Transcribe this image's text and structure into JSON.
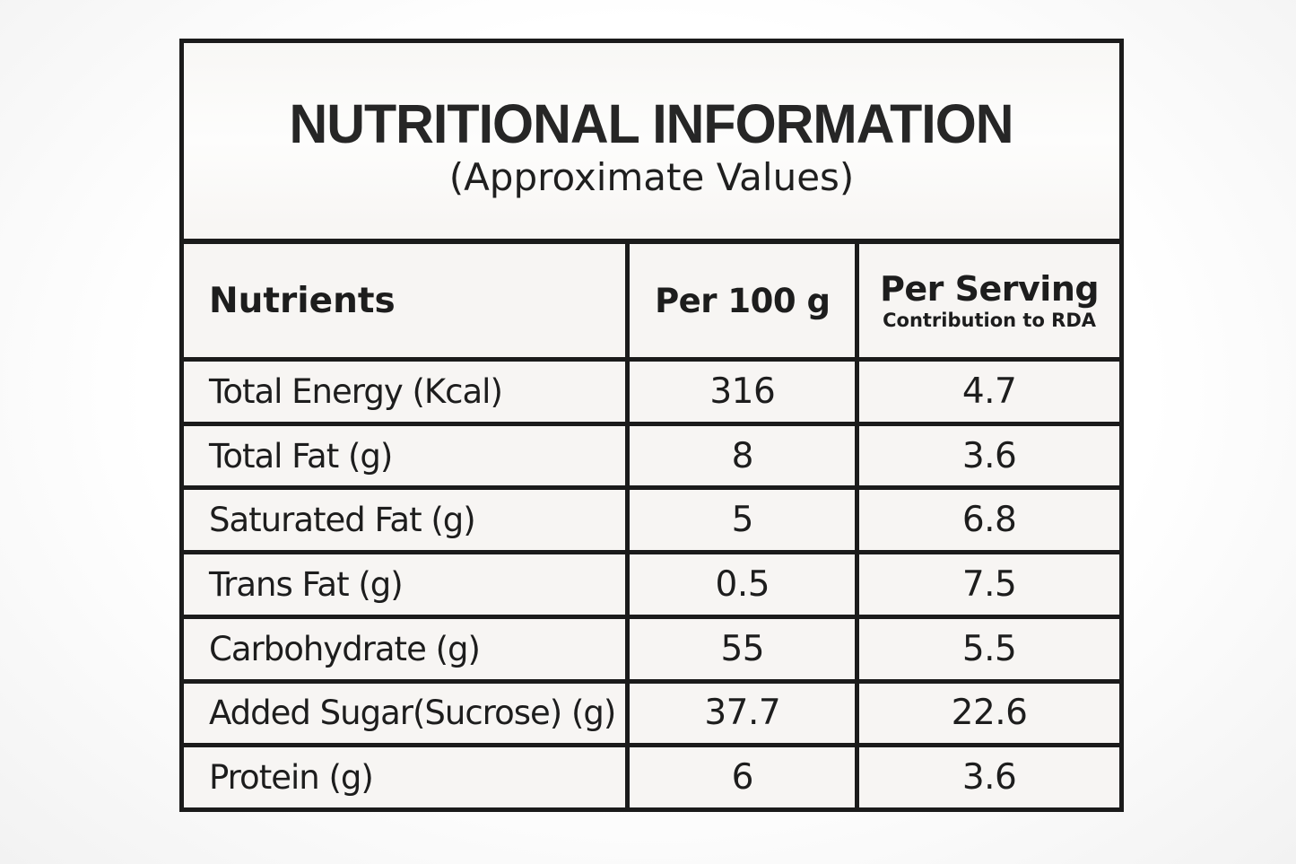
{
  "panel": {
    "title": "NUTRITIONAL INFORMATION",
    "subtitle": "(Approximate Values)"
  },
  "table": {
    "columns": {
      "nutrients": "Nutrients",
      "per_100g": "Per 100 g",
      "per_serving": "Per Serving",
      "per_serving_sub": "Contribution to RDA"
    },
    "rows": [
      {
        "nutrient": "Total Energy (Kcal)",
        "per_100g": "316",
        "per_serving": "4.7"
      },
      {
        "nutrient": "Total Fat (g)",
        "per_100g": "8",
        "per_serving": "3.6"
      },
      {
        "nutrient": "Saturated Fat (g)",
        "per_100g": "5",
        "per_serving": "6.8"
      },
      {
        "nutrient": "Trans Fat (g)",
        "per_100g": "0.5",
        "per_serving": "7.5"
      },
      {
        "nutrient": "Carbohydrate (g)",
        "per_100g": "55",
        "per_serving": "5.5"
      },
      {
        "nutrient": "Added Sugar(Sucrose) (g)",
        "per_100g": "37.7",
        "per_serving": "22.6"
      },
      {
        "nutrient": "Protein (g)",
        "per_100g": "6",
        "per_serving": "3.6"
      }
    ]
  },
  "colors": {
    "border": "#1b1b1b",
    "cell_background": "#f7f5f3",
    "text": "#1d1d1d",
    "page_background": "#fbfbfb"
  }
}
